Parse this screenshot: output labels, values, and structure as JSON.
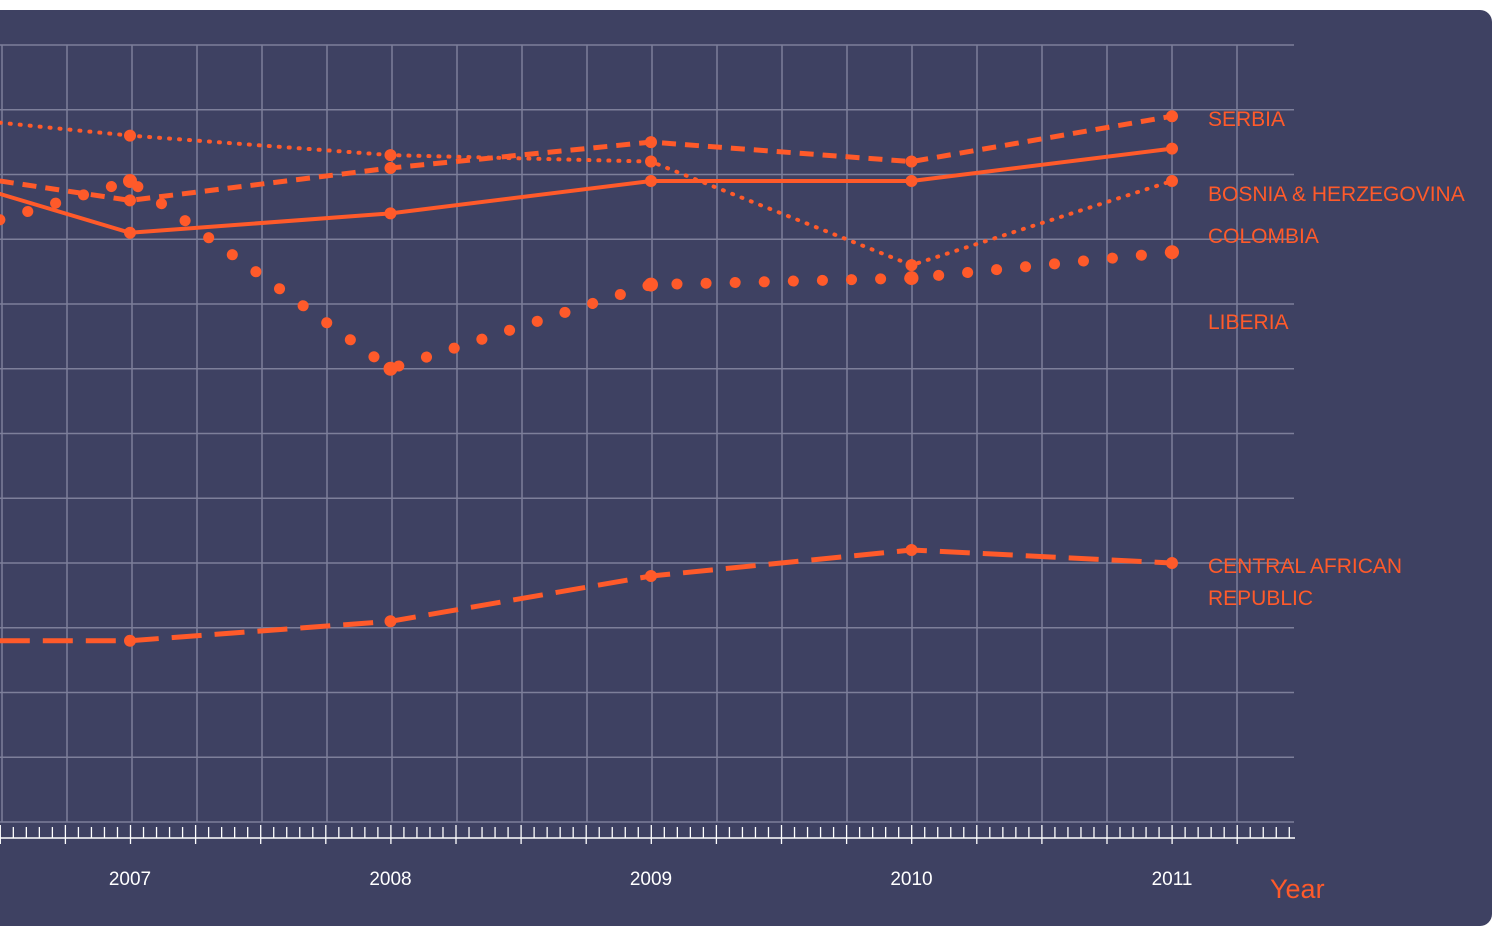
{
  "colors": {
    "background": "#3e4162",
    "grid": "#7d7f9a",
    "accent": "#ff5a2a",
    "tick_text": "#ffffff"
  },
  "chart_data": {
    "type": "line",
    "title": "",
    "xlabel": "Year",
    "ylabel": "",
    "x_ticks": [
      2007,
      2008,
      2009,
      2010,
      2011
    ],
    "xlim": [
      2006.5,
      2011.5
    ],
    "ylim": [
      0,
      12
    ],
    "grid": true,
    "legend": "end-of-line labels",
    "series": [
      {
        "name": "SERBIA",
        "style": "dotted",
        "x": [
          2006.5,
          2007,
          2008,
          2009,
          2010,
          2011
        ],
        "y": [
          10.8,
          10.6,
          10.3,
          10.2,
          8.6,
          9.9
        ]
      },
      {
        "name": "BOSNIA & HERZEGOVINA",
        "style": "dashed",
        "x": [
          2006.5,
          2007,
          2008,
          2009,
          2010,
          2011
        ],
        "y": [
          9.9,
          9.6,
          10.1,
          10.5,
          10.2,
          10.9
        ]
      },
      {
        "name": "COLOMBIA",
        "style": "solid",
        "x": [
          2006.5,
          2007,
          2008,
          2009,
          2010,
          2011
        ],
        "y": [
          9.7,
          9.1,
          9.4,
          9.9,
          9.9,
          10.4
        ]
      },
      {
        "name": "LIBERIA",
        "style": "large-dots",
        "x": [
          2006.5,
          2007,
          2008,
          2009,
          2010,
          2011
        ],
        "y": [
          9.3,
          9.9,
          7.0,
          8.3,
          8.4,
          8.8
        ]
      },
      {
        "name": "CENTRAL AFRICAN REPUBLIC",
        "style": "long-dash",
        "x": [
          2006.5,
          2007,
          2008,
          2009,
          2010,
          2011
        ],
        "y": [
          2.8,
          2.8,
          3.1,
          3.8,
          4.2,
          4.0
        ]
      }
    ]
  }
}
